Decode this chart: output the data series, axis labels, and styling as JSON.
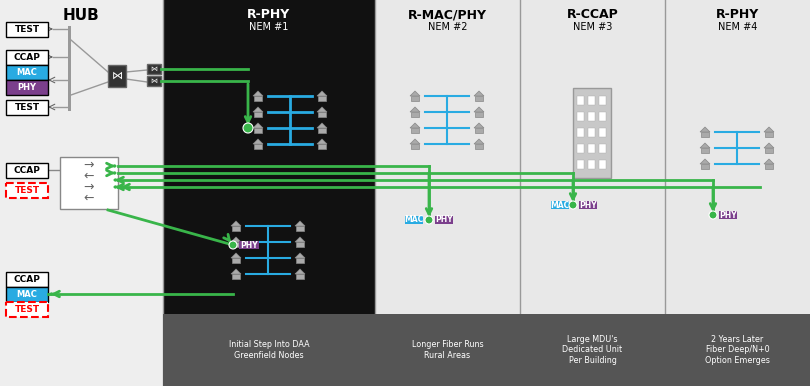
{
  "fig_width": 8.1,
  "fig_height": 3.86,
  "dpi": 100,
  "cyan": "#29abe2",
  "green": "#39b54a",
  "mac_blue": "#29abe2",
  "phy_purple": "#7b3f8c",
  "dark_bg": "#111111",
  "light_bg": "#e8e8e8",
  "hub_bg": "#eeeeee",
  "footer_bg": "#555555",
  "gray_house": "#aaaaaa",
  "divider": "#999999",
  "hub_title": "HUB",
  "nem1_title": "R-PHY",
  "nem1_sub": "NEM #1",
  "nem2_title": "R-MAC/PHY",
  "nem2_sub": "NEM #2",
  "nem3_title": "R-CCAP",
  "nem3_sub": "NEM #3",
  "nem4_title": "R-PHY",
  "nem4_sub": "NEM #4",
  "footer1": "Initial Step Into DAA\nGreenfield Nodes",
  "footer2": "Longer Fiber Runs\nRural Areas",
  "footer3": "Large MDU's\nDedicated Unit\nPer Building",
  "footer4": "2 Years Later\nFiber Deep/N+0\nOption Emerges"
}
